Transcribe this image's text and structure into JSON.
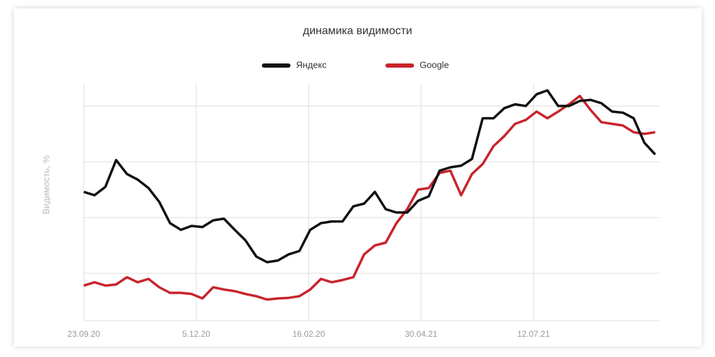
{
  "chart_data": {
    "type": "line",
    "title": "динамика видимости",
    "ylabel": "Видимость, %",
    "x": [
      0,
      7,
      14,
      21,
      28,
      35,
      42,
      49,
      56,
      63,
      70,
      77,
      84,
      91,
      98,
      105,
      112,
      119,
      126,
      133,
      140,
      147,
      154,
      161,
      168,
      175,
      182,
      189,
      196,
      203,
      210,
      217,
      224,
      231,
      238,
      245,
      252,
      259,
      266,
      273,
      280,
      287,
      294,
      301,
      308,
      315,
      322,
      329,
      336,
      343,
      350,
      357,
      364,
      371
    ],
    "series": [
      {
        "name": "Яндекс",
        "color": "#111111",
        "values": [
          2.46,
          2.4,
          2.55,
          3.03,
          2.78,
          2.68,
          2.53,
          2.28,
          1.9,
          1.78,
          1.85,
          1.83,
          1.95,
          1.98,
          1.78,
          1.59,
          1.3,
          1.2,
          1.23,
          1.34,
          1.4,
          1.78,
          1.9,
          1.93,
          1.93,
          2.2,
          2.25,
          2.46,
          2.15,
          2.09,
          2.09,
          2.3,
          2.38,
          2.84,
          2.9,
          2.93,
          3.05,
          3.78,
          3.78,
          3.96,
          4.03,
          4.0,
          4.21,
          4.28,
          4.0,
          4.0,
          4.09,
          4.11,
          4.05,
          3.9,
          3.88,
          3.78,
          3.34,
          3.13
        ]
      },
      {
        "name": "Google",
        "color": "#c8242c",
        "values": [
          0.78,
          0.84,
          0.78,
          0.8,
          0.93,
          0.84,
          0.9,
          0.75,
          0.65,
          0.65,
          0.63,
          0.55,
          0.75,
          0.71,
          0.68,
          0.63,
          0.59,
          0.53,
          0.55,
          0.56,
          0.59,
          0.71,
          0.9,
          0.84,
          0.88,
          0.93,
          1.34,
          1.5,
          1.55,
          1.9,
          2.15,
          2.5,
          2.53,
          2.8,
          2.84,
          2.4,
          2.78,
          2.96,
          3.28,
          3.46,
          3.68,
          3.75,
          3.9,
          3.78,
          3.9,
          4.03,
          4.18,
          3.93,
          3.71,
          3.68,
          3.65,
          3.53,
          3.5,
          3.53
        ]
      }
    ],
    "xlim": [
      0,
      374
    ],
    "xticks": [
      {
        "value": 0,
        "label": "23.09.20"
      },
      {
        "value": 73,
        "label": "5.12.20"
      },
      {
        "value": 146,
        "label": "16.02.20"
      },
      {
        "value": 219,
        "label": "30.04.21"
      },
      {
        "value": 292,
        "label": "12.07.21"
      }
    ],
    "ylim": [
      0.15,
      4.4
    ],
    "yticks": [
      1,
      2,
      3,
      4
    ],
    "grid": true
  }
}
